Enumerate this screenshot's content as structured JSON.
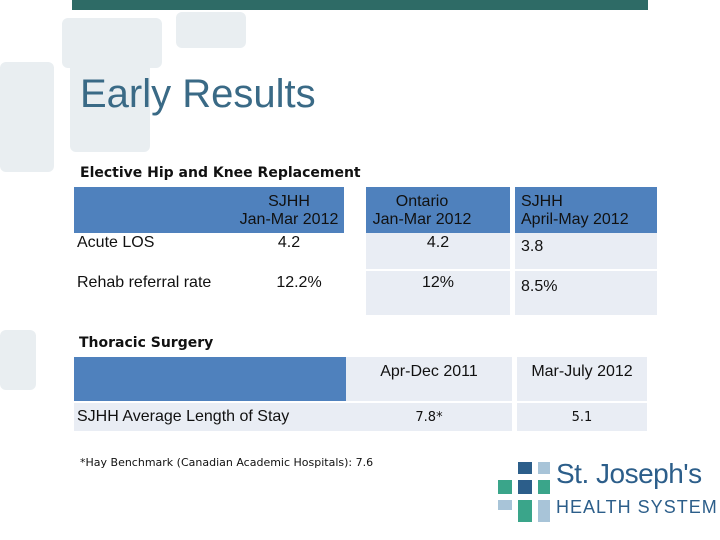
{
  "title": "Early Results",
  "section1": {
    "heading": "Elective Hip and Knee Replacement",
    "headers": [
      "SJHH\nJan-Mar 2012",
      "Ontario\nJan-Mar 2012",
      "SJHH\nApril-May 2012"
    ],
    "rows": [
      {
        "label": "Acute LOS",
        "values": [
          "4.2",
          "4.2",
          "3.8"
        ]
      },
      {
        "label": "Rehab referral rate",
        "values": [
          "12.2%",
          "12%",
          "8.5%"
        ]
      }
    ]
  },
  "section2": {
    "heading": "Thoracic Surgery",
    "headers": [
      "Apr-Dec 2011",
      "Mar-July 2012"
    ],
    "row": {
      "label": "SJHH Average Length of Stay",
      "values": [
        "7.8*",
        "5.1"
      ]
    }
  },
  "footnote": "*Hay Benchmark (Canadian Academic Hospitals): 7.6",
  "logo": {
    "line1": "St. Joseph's",
    "line2": "HEALTH SYSTEM"
  },
  "colors": {
    "header_blue": "#4f81bd",
    "row_light": "#e9edf4",
    "title": "#3a6a86",
    "topbar": "#2e6b66",
    "logo_blue": "#2c5e8a",
    "logo_green": "#3aa58a"
  }
}
